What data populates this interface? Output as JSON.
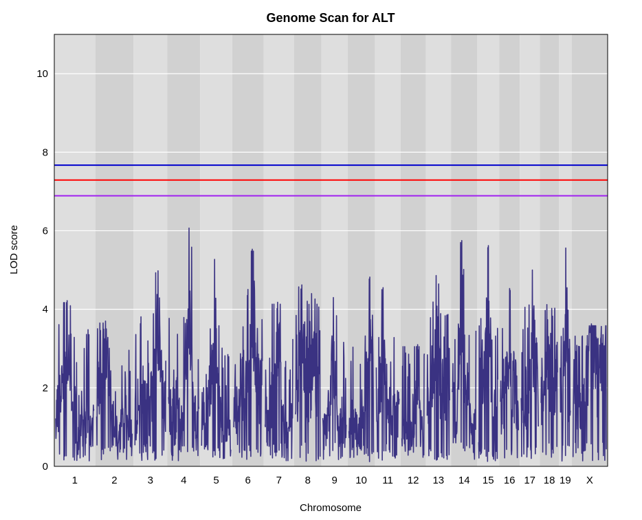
{
  "chart_data": {
    "type": "line",
    "title": "Genome Scan for ALT",
    "xlabel": "Chromosome",
    "ylabel": "LOD score",
    "ylim": [
      0,
      11
    ],
    "yticks": [
      0,
      2,
      4,
      6,
      8,
      10
    ],
    "chromosomes": [
      "1",
      "2",
      "3",
      "4",
      "5",
      "6",
      "7",
      "8",
      "9",
      "10",
      "11",
      "12",
      "13",
      "14",
      "15",
      "16",
      "17",
      "18",
      "19",
      "X"
    ],
    "chromosome_lengths": [
      195,
      182,
      160,
      157,
      152,
      150,
      145,
      130,
      124,
      130,
      122,
      120,
      120,
      125,
      104,
      98,
      95,
      91,
      61,
      171
    ],
    "band_colors": [
      "#dedede",
      "#d1d1d1"
    ],
    "gridlines": true,
    "thresholds": [
      {
        "value": 7.67,
        "color": "#0000cd"
      },
      {
        "value": 7.29,
        "color": "#ff0000"
      },
      {
        "value": 6.89,
        "color": "#a020f0"
      }
    ],
    "series": [
      {
        "name": "ALT",
        "color": "#3a3282",
        "peaks": [
          {
            "chr": "1",
            "pos": 0.3,
            "lod": 4.22
          },
          {
            "chr": "2",
            "pos": 0.25,
            "lod": 3.7
          },
          {
            "chr": "3",
            "pos": 0.75,
            "lod": 4.98
          },
          {
            "chr": "4",
            "pos": 0.68,
            "lod": 6.07
          },
          {
            "chr": "5",
            "pos": 0.45,
            "lod": 5.27
          },
          {
            "chr": "6",
            "pos": 0.65,
            "lod": 5.53
          },
          {
            "chr": "7",
            "pos": 0.45,
            "lod": 4.18
          },
          {
            "chr": "8",
            "pos": 0.25,
            "lod": 4.62
          },
          {
            "chr": "9",
            "pos": 0.45,
            "lod": 4.3
          },
          {
            "chr": "10",
            "pos": 0.85,
            "lod": 4.82
          },
          {
            "chr": "11",
            "pos": 0.3,
            "lod": 4.55
          },
          {
            "chr": "12",
            "pos": 0.7,
            "lod": 3.1
          },
          {
            "chr": "13",
            "pos": 0.4,
            "lod": 4.86
          },
          {
            "chr": "14",
            "pos": 0.4,
            "lod": 5.75
          },
          {
            "chr": "15",
            "pos": 0.5,
            "lod": 5.62
          },
          {
            "chr": "16",
            "pos": 0.5,
            "lod": 4.53
          },
          {
            "chr": "17",
            "pos": 0.65,
            "lod": 5.0
          },
          {
            "chr": "18",
            "pos": 0.35,
            "lod": 4.12
          },
          {
            "chr": "19",
            "pos": 0.55,
            "lod": 5.56
          },
          {
            "chr": "X",
            "pos": 0.55,
            "lod": 3.63
          }
        ]
      }
    ]
  }
}
